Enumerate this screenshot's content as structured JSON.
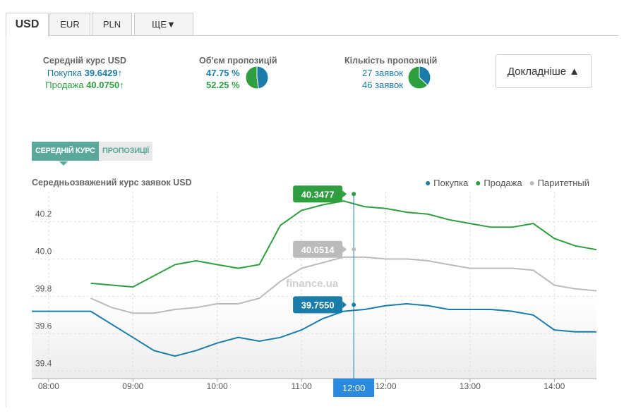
{
  "tabs": [
    "USD",
    "EUR",
    "PLN",
    "ЩЕ▼"
  ],
  "summary": {
    "average": {
      "title": "Середній курс USD",
      "buy_label": "Покупка",
      "buy_value": "39.6429",
      "sell_label": "Продажа",
      "sell_value": "40.0750",
      "arrow": "↑"
    },
    "volume": {
      "title": "Об'єм пропозицій",
      "values": [
        47.75,
        52.25
      ],
      "value_labels": [
        "47.75 %",
        "52.25 %"
      ]
    },
    "count": {
      "title": "Кількість пропозицій",
      "values": [
        27,
        46
      ],
      "value_labels": [
        "27 заявок",
        "46 заявок"
      ]
    }
  },
  "details_button": "Докладніше ▲",
  "chart_tabs": [
    "СЕРЕДНІЙ КУРС",
    "ПРОПОЗИЦІЇ"
  ],
  "watermark": "finance.ua",
  "chart_data": {
    "type": "line",
    "title": "Середньозважений курс заявок USD",
    "x": [
      7.8,
      8,
      8.25,
      8.5,
      8.75,
      9,
      9.25,
      9.5,
      9.75,
      10,
      10.25,
      10.5,
      10.75,
      11,
      11.25,
      11.5,
      11.75,
      12,
      12.25,
      12.5,
      12.75,
      13,
      13.25,
      13.5,
      13.75,
      14,
      14.25,
      14.5
    ],
    "xlim": [
      7.8,
      14.5
    ],
    "xticks": [
      {
        "value": 8,
        "label": "08:00"
      },
      {
        "value": 9,
        "label": "09:00"
      },
      {
        "value": 10,
        "label": "10:00"
      },
      {
        "value": 11,
        "label": "11:00"
      },
      {
        "value": 12,
        "label": "12:00"
      },
      {
        "value": 13,
        "label": "13:00"
      },
      {
        "value": 14,
        "label": "14:00"
      }
    ],
    "ylim": [
      39.36,
      40.36
    ],
    "yticks": [
      39.4,
      39.6,
      39.8,
      {
        "value": 40,
        "label": "40.0"
      },
      40.2
    ],
    "grid": true,
    "legend": "top-right",
    "series": [
      {
        "name": "Покупка",
        "color": "#1a7ca8",
        "values": [
          39.72,
          39.72,
          39.72,
          39.72,
          39.65,
          39.58,
          39.51,
          39.48,
          39.51,
          39.55,
          39.58,
          39.56,
          39.58,
          39.62,
          39.68,
          39.72,
          39.73,
          39.75,
          39.76,
          39.75,
          39.73,
          39.73,
          39.73,
          39.72,
          39.7,
          39.62,
          39.61,
          39.61
        ]
      },
      {
        "name": "Продажа",
        "color": "#2e9e3e",
        "values": [
          null,
          null,
          null,
          39.87,
          39.86,
          39.85,
          39.91,
          39.97,
          39.99,
          39.97,
          39.95,
          39.97,
          40.18,
          40.26,
          40.29,
          40.31,
          40.28,
          40.27,
          40.25,
          40.24,
          40.21,
          40.19,
          40.17,
          40.17,
          40.19,
          40.11,
          40.07,
          40.05
        ]
      },
      {
        "name": "Паритетный",
        "color": "#bbbbbb",
        "values": [
          null,
          null,
          null,
          39.79,
          39.74,
          39.71,
          39.71,
          39.73,
          39.74,
          39.76,
          39.76,
          39.79,
          39.88,
          39.95,
          39.98,
          40.01,
          40.01,
          40,
          40,
          39.99,
          39.97,
          39.95,
          39.95,
          39.95,
          39.94,
          39.86,
          39.84,
          39.83
        ]
      }
    ],
    "crosshair": {
      "x": 11.62,
      "label": "12:00",
      "values": [
        39.755,
        40.3477,
        40.0514
      ],
      "value_labels": [
        "39.7550",
        "40.3477",
        "40.0514"
      ]
    }
  }
}
